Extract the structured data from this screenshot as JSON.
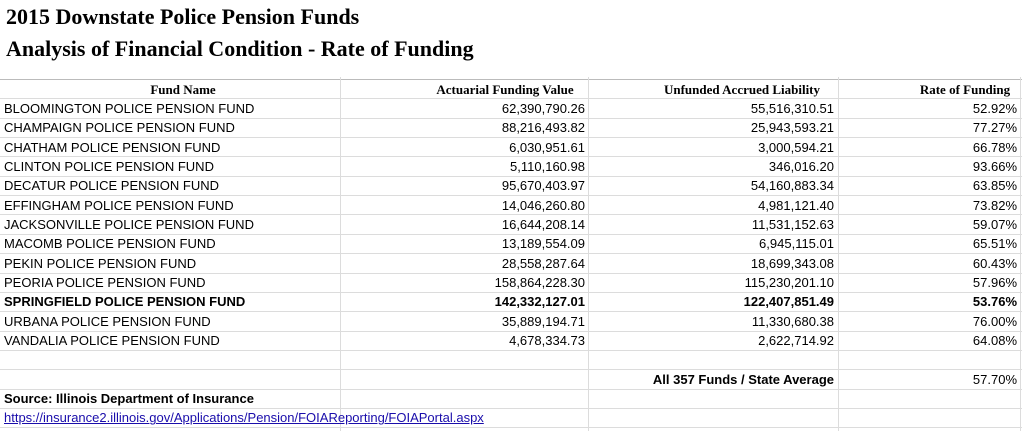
{
  "header": {
    "title": "2015 Downstate Police Pension Funds",
    "subtitle": "Analysis of Financial Condition - Rate of Funding"
  },
  "table": {
    "columns": [
      "Fund Name",
      "Actuarial Funding Value",
      "Unfunded Accrued Liability",
      "Rate of Funding"
    ],
    "rows": [
      [
        "BLOOMINGTON POLICE PENSION FUND",
        "62,390,790.26",
        "55,516,310.51",
        "52.92%"
      ],
      [
        "CHAMPAIGN POLICE PENSION FUND",
        "88,216,493.82",
        "25,943,593.21",
        "77.27%"
      ],
      [
        "CHATHAM POLICE PENSION FUND",
        "6,030,951.61",
        "3,000,594.21",
        "66.78%"
      ],
      [
        "CLINTON POLICE PENSION FUND",
        "5,110,160.98",
        "346,016.20",
        "93.66%"
      ],
      [
        "DECATUR POLICE PENSION FUND",
        "95,670,403.97",
        "54,160,883.34",
        "63.85%"
      ],
      [
        "EFFINGHAM POLICE PENSION FUND",
        "14,046,260.80",
        "4,981,121.40",
        "73.82%"
      ],
      [
        "JACKSONVILLE POLICE PENSION FUND",
        "16,644,208.14",
        "11,531,152.63",
        "59.07%"
      ],
      [
        "MACOMB POLICE PENSION FUND",
        "13,189,554.09",
        "6,945,115.01",
        "65.51%"
      ],
      [
        "PEKIN POLICE PENSION FUND",
        "28,558,287.64",
        "18,699,343.08",
        "60.43%"
      ],
      [
        "PEORIA POLICE PENSION FUND",
        "158,864,228.30",
        "115,230,201.10",
        "57.96%"
      ],
      [
        "SPRINGFIELD POLICE PENSION FUND",
        "142,332,127.01",
        "122,407,851.49",
        "53.76%"
      ],
      [
        "URBANA POLICE PENSION FUND",
        "35,889,194.71",
        "11,330,680.38",
        "76.00%"
      ],
      [
        "VANDALIA POLICE PENSION FUND",
        "4,678,334.73",
        "2,622,714.92",
        "64.08%"
      ]
    ]
  },
  "footer": {
    "label": "All 357 Funds / State Average",
    "value": "57.70%"
  },
  "source": {
    "text": "Source: Illinois Department of Insurance",
    "url": "https://insurance2.illinois.gov/Applications/Pension/FOIAReporting/FOIAPortal.aspx"
  }
}
